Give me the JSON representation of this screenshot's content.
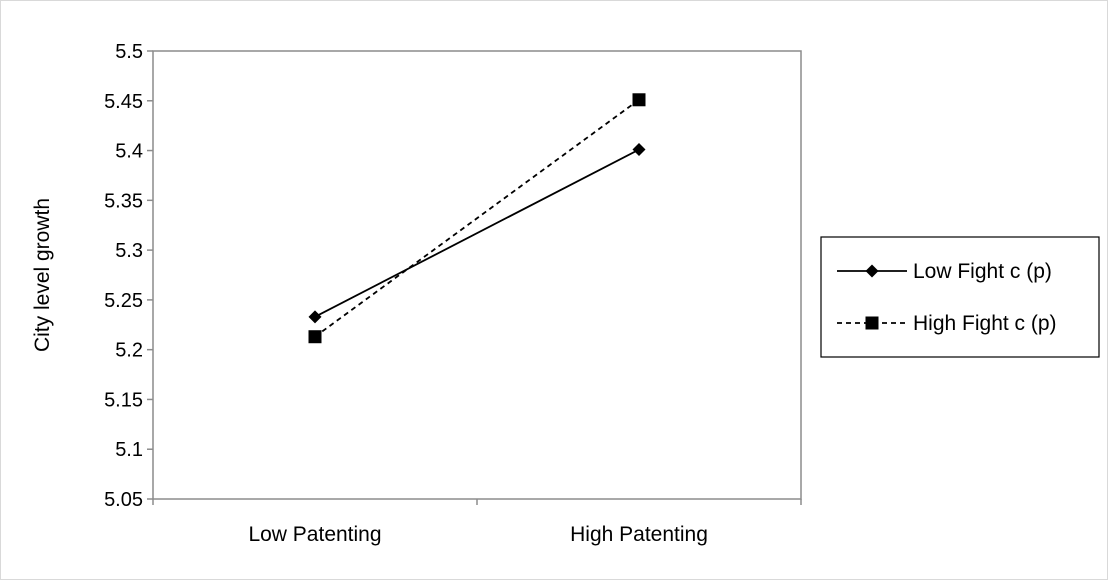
{
  "chart_data": {
    "type": "line",
    "title": "",
    "xlabel": "",
    "ylabel": "City level growth",
    "categories": [
      "Low Patenting",
      "High Patenting"
    ],
    "ylim": [
      5.05,
      5.5
    ],
    "yticks": [
      "5.05",
      "5.1",
      "5.15",
      "5.2",
      "5.25",
      "5.3",
      "5.35",
      "5.4",
      "5.45",
      "5.5"
    ],
    "grid": false,
    "legend_position": "right",
    "series": [
      {
        "name": "Low Fight c (p)",
        "values": [
          5.233,
          5.401
        ],
        "marker": "diamond",
        "line_style": "solid",
        "color": "#000000"
      },
      {
        "name": "High Fight c (p)",
        "values": [
          5.213,
          5.451
        ],
        "marker": "square",
        "line_style": "dashed",
        "color": "#000000"
      }
    ]
  }
}
